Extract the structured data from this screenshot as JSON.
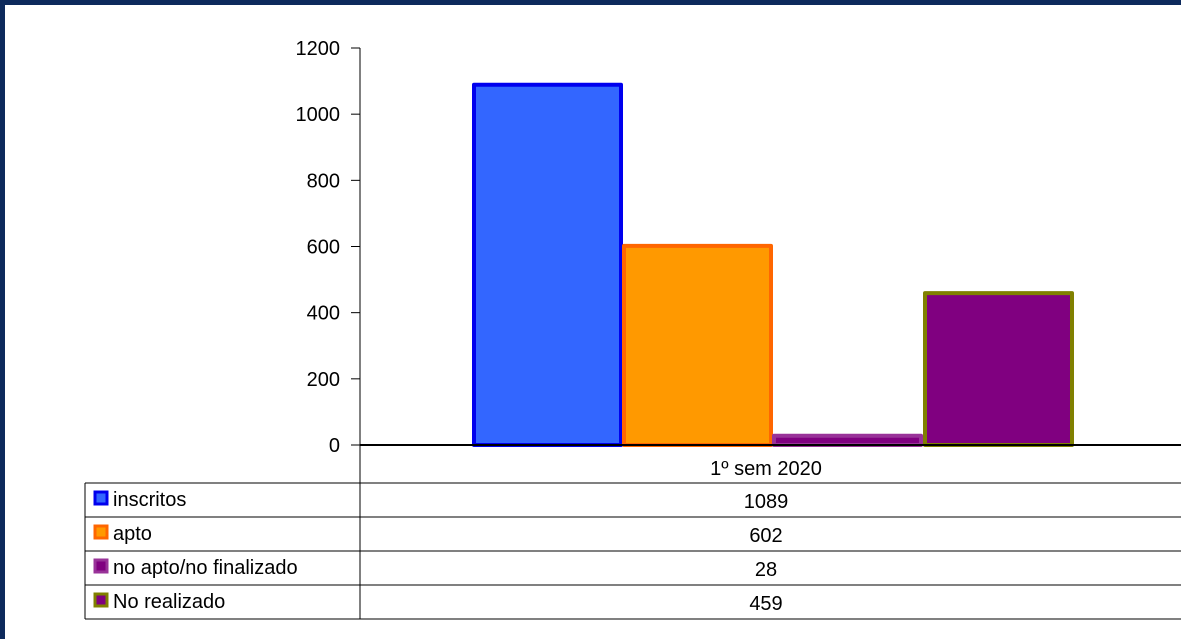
{
  "chart_data": {
    "type": "bar",
    "categories": [
      "1º sem 2020"
    ],
    "series": [
      {
        "name": "inscritos",
        "values": [
          1089
        ],
        "fill": "#3366ff",
        "stroke": "#0000ee"
      },
      {
        "name": "apto",
        "values": [
          602
        ],
        "fill": "#ff9900",
        "stroke": "#ff6600"
      },
      {
        "name": "no apto/no finalizado",
        "values": [
          28
        ],
        "fill": "#800080",
        "stroke": "#993399"
      },
      {
        "name": "No realizado",
        "values": [
          459
        ],
        "fill": "#800080",
        "stroke": "#808000"
      }
    ],
    "ylim": [
      0,
      1200
    ],
    "yticks": [
      0,
      200,
      400,
      600,
      800,
      1000,
      1200
    ],
    "legend": "data-table",
    "grid": false
  }
}
